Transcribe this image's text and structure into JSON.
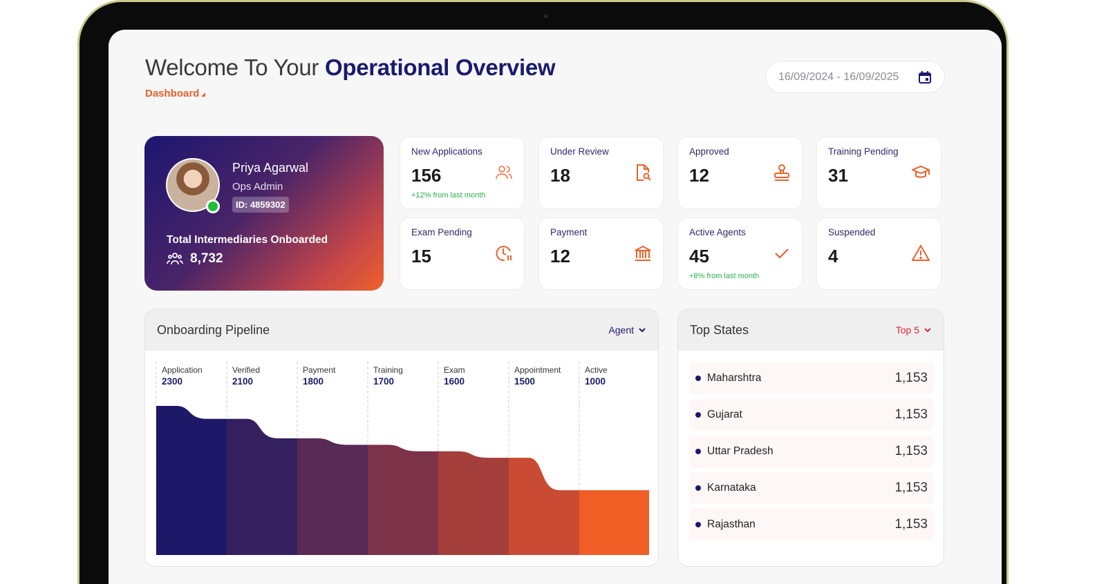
{
  "header": {
    "title_prefix": "Welcome To Your",
    "title_bold": "Operational Overview",
    "breadcrumb": "Dashboard",
    "date_range": "16/09/2024 - 16/09/2025"
  },
  "profile": {
    "name": "Priya Agarwal",
    "role": "Ops Admin",
    "id": "ID: 4859302",
    "total_label": "Total Intermediaries Onboarded",
    "total_value": "8,732"
  },
  "stats": [
    {
      "label": "New Applications",
      "value": "156",
      "trend": "+12% from last month",
      "icon": "users-icon"
    },
    {
      "label": "Under Review",
      "value": "18",
      "trend": "",
      "icon": "document-search-icon"
    },
    {
      "label": "Approved",
      "value": "12",
      "trend": "",
      "icon": "stamp-icon"
    },
    {
      "label": "Training Pending",
      "value": "31",
      "trend": "",
      "icon": "graduation-cap-icon"
    },
    {
      "label": "Exam Pending",
      "value": "15",
      "trend": "",
      "icon": "clock-pause-icon"
    },
    {
      "label": "Payment",
      "value": "12",
      "trend": "",
      "icon": "bank-icon"
    },
    {
      "label": "Active Agents",
      "value": "45",
      "trend": "+8% from last month",
      "icon": "check-icon"
    },
    {
      "label": "Suspended",
      "value": "4",
      "trend": "",
      "icon": "warning-icon"
    }
  ],
  "pipeline": {
    "title": "Onboarding Pipeline",
    "filter": "Agent"
  },
  "chart_data": {
    "type": "area",
    "categories": [
      "Application",
      "Verified",
      "Payment",
      "Training",
      "Exam",
      "Appointment",
      "Active"
    ],
    "values": [
      2300,
      2100,
      1800,
      1700,
      1600,
      1500,
      1000
    ],
    "colors": [
      "#1d1867",
      "#34205e",
      "#582a55",
      "#7c3249",
      "#a43f3c",
      "#c94b33",
      "#f05e26"
    ],
    "ylim": [
      0,
      2300
    ],
    "grid": "vertical dashed separators"
  },
  "top_states": {
    "title": "Top States",
    "filter": "Top 5",
    "rows": [
      {
        "name": "Maharshtra",
        "value": "1,153"
      },
      {
        "name": "Gujarat",
        "value": "1,153"
      },
      {
        "name": "Uttar Pradesh",
        "value": "1,153"
      },
      {
        "name": "Karnataka",
        "value": "1,153"
      },
      {
        "name": "Rajasthan",
        "value": "1,153"
      }
    ]
  },
  "colors": {
    "accent": "#e8612a",
    "brand": "#1a1a6e",
    "positive": "#27b34a",
    "danger": "#d7263d"
  }
}
